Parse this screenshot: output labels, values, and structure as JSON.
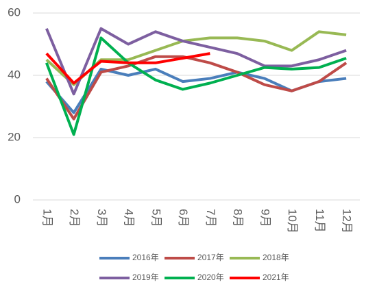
{
  "chart_data": {
    "type": "line",
    "categories": [
      "1月",
      "2月",
      "3月",
      "4月",
      "5月",
      "6月",
      "7月",
      "8月",
      "9月",
      "10月",
      "11月",
      "12月"
    ],
    "series": [
      {
        "name": "2016年",
        "color": "#4a7ebb",
        "values": [
          38,
          28,
          42,
          40,
          42,
          38,
          39,
          41,
          39,
          35,
          38,
          39
        ]
      },
      {
        "name": "2017年",
        "color": "#be4b48",
        "values": [
          39,
          26,
          41,
          43,
          46,
          46,
          44,
          41,
          37,
          35,
          38,
          44
        ]
      },
      {
        "name": "2018年",
        "color": "#98b954",
        "values": [
          45,
          37,
          45,
          45,
          48,
          51,
          52,
          52,
          51,
          48,
          54,
          53
        ]
      },
      {
        "name": "2019年",
        "color": "#7d5fa0",
        "values": [
          55,
          34,
          55,
          50,
          54,
          51,
          49,
          47,
          43,
          43,
          45,
          48
        ]
      },
      {
        "name": "2020年",
        "color": "#00b050",
        "values": [
          44,
          21,
          52,
          44,
          38.5,
          35.5,
          37.5,
          40,
          42.5,
          42,
          42.5,
          45.5
        ]
      },
      {
        "name": "2021年",
        "color": "#ff0000",
        "values": [
          47,
          37.5,
          44.5,
          44,
          44,
          45.5,
          47,
          null,
          null,
          null,
          null,
          null
        ]
      }
    ],
    "ylim": [
      0,
      60
    ],
    "yticks": [
      0,
      20,
      40,
      60
    ],
    "grid": true
  }
}
